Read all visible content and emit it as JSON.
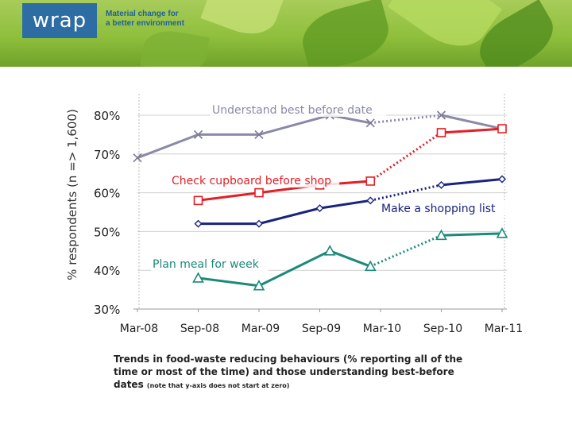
{
  "header": {
    "logo_text": "wrap",
    "tagline_line1": "Material change for",
    "tagline_line2": "a better environment"
  },
  "chart_data": {
    "type": "line",
    "ylabel": "% respondents (n => 1,600)",
    "categories": [
      "Mar-08",
      "Sep-08",
      "Mar-09",
      "Sep-09",
      "Mar-10",
      "Sep-10",
      "Mar-11"
    ],
    "y_ticks": [
      "80%",
      "70%",
      "60%",
      "50%",
      "40%",
      "30%"
    ],
    "ylim": [
      30,
      85
    ],
    "grid": "horizontal",
    "series": [
      {
        "name": "Understand best before date",
        "color": "#8a8aa8",
        "marker": "x",
        "points": [
          {
            "x": "2008-03",
            "y": 69
          },
          {
            "x": "2008-09",
            "y": 75
          },
          {
            "x": "2009-03",
            "y": 75
          },
          {
            "x": "2009-10",
            "y": 80
          },
          {
            "x": "2010-02",
            "y": 78
          },
          {
            "x": "2010-09",
            "y": 80
          },
          {
            "x": "2011-03",
            "y": 76.5
          }
        ],
        "dotted_after_index": 4
      },
      {
        "name": "Check cupboard before shop",
        "color": "#e31e24",
        "marker": "square",
        "points": [
          {
            "x": "2008-09",
            "y": 58
          },
          {
            "x": "2009-03",
            "y": 60
          },
          {
            "x": "2009-09",
            "y": 62
          },
          {
            "x": "2010-02",
            "y": 63
          },
          {
            "x": "2010-09",
            "y": 75.5
          },
          {
            "x": "2011-03",
            "y": 76.5
          }
        ],
        "dotted_after_index": 3
      },
      {
        "name": "Make a shopping list",
        "color": "#1a237e",
        "marker": "diamond",
        "points": [
          {
            "x": "2008-09",
            "y": 52
          },
          {
            "x": "2009-03",
            "y": 52
          },
          {
            "x": "2009-09",
            "y": 56
          },
          {
            "x": "2010-02",
            "y": 58
          },
          {
            "x": "2010-09",
            "y": 62
          },
          {
            "x": "2011-03",
            "y": 63.5
          }
        ],
        "dotted_after_index": 3
      },
      {
        "name": "Plan meal for week",
        "color": "#1b8a7a",
        "marker": "triangle",
        "points": [
          {
            "x": "2008-09",
            "y": 38
          },
          {
            "x": "2009-03",
            "y": 36
          },
          {
            "x": "2009-10",
            "y": 45
          },
          {
            "x": "2010-02",
            "y": 41
          },
          {
            "x": "2010-09",
            "y": 49
          },
          {
            "x": "2011-03",
            "y": 49.5
          }
        ],
        "dotted_after_index": 3
      }
    ]
  },
  "caption": {
    "main": "Trends in food-waste reducing behaviours (% reporting all of the time or most of the time) and those understanding best-before dates",
    "note": "(note that y-axis does not start at zero)"
  }
}
